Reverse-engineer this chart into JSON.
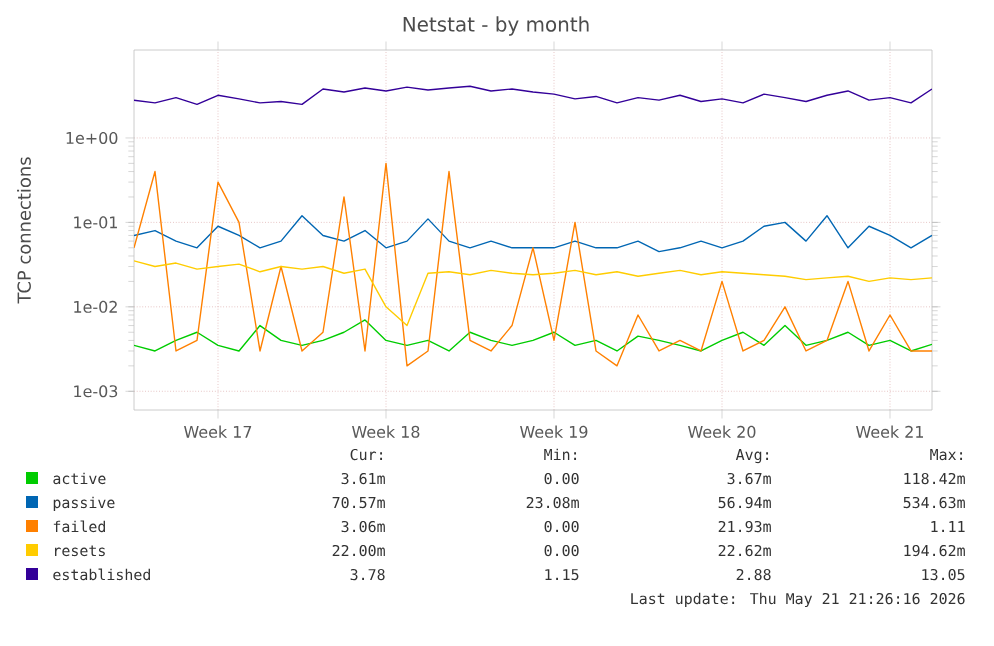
{
  "chart_data": {
    "type": "line",
    "title": "Netstat - by month",
    "ylabel": "TCP connections",
    "log": "y",
    "grid": true,
    "legend": "bottom",
    "ylim": [
      0.0006,
      11
    ],
    "yticks": [
      {
        "value": 0.001,
        "label": "1e-03"
      },
      {
        "value": 0.01,
        "label": "1e-02"
      },
      {
        "value": 0.1,
        "label": "1e-01"
      },
      {
        "value": 1,
        "label": "1e+00"
      }
    ],
    "categories": [
      null,
      null,
      null,
      null,
      "Week 17",
      null,
      null,
      null,
      null,
      null,
      null,
      null,
      "Week 18",
      null,
      null,
      null,
      null,
      null,
      null,
      null,
      "Week 19",
      null,
      null,
      null,
      null,
      null,
      null,
      null,
      "Week 20",
      null,
      null,
      null,
      null,
      null,
      null,
      null,
      "Week 21",
      null,
      null
    ],
    "series": [
      {
        "name": "active",
        "color": "#00cc00",
        "values": [
          0.0035,
          0.003,
          0.004,
          0.005,
          0.0035,
          0.003,
          0.006,
          0.004,
          0.0035,
          0.004,
          0.005,
          0.007,
          0.004,
          0.0035,
          0.004,
          0.003,
          0.005,
          0.004,
          0.0035,
          0.004,
          0.005,
          0.0035,
          0.004,
          0.003,
          0.0045,
          0.004,
          0.0035,
          0.003,
          0.004,
          0.005,
          0.0035,
          0.006,
          0.0035,
          0.004,
          0.005,
          0.0035,
          0.004,
          0.003,
          0.0036
        ]
      },
      {
        "name": "passive",
        "color": "#0066b3",
        "values": [
          0.07,
          0.08,
          0.06,
          0.05,
          0.09,
          0.07,
          0.05,
          0.06,
          0.12,
          0.07,
          0.06,
          0.08,
          0.05,
          0.06,
          0.11,
          0.06,
          0.05,
          0.06,
          0.05,
          0.05,
          0.05,
          0.06,
          0.05,
          0.05,
          0.06,
          0.045,
          0.05,
          0.06,
          0.05,
          0.06,
          0.09,
          0.1,
          0.06,
          0.12,
          0.05,
          0.09,
          0.07,
          0.05,
          0.07
        ]
      },
      {
        "name": "failed",
        "color": "#ff8000",
        "values": [
          0.05,
          0.4,
          0.003,
          0.004,
          0.3,
          0.1,
          0.003,
          0.03,
          0.003,
          0.005,
          0.2,
          0.003,
          0.5,
          0.002,
          0.003,
          0.4,
          0.004,
          0.003,
          0.006,
          0.05,
          0.004,
          0.1,
          0.003,
          0.002,
          0.008,
          0.003,
          0.004,
          0.003,
          0.02,
          0.003,
          0.004,
          0.01,
          0.003,
          0.004,
          0.02,
          0.003,
          0.008,
          0.003,
          0.003
        ]
      },
      {
        "name": "resets",
        "color": "#ffcc00",
        "values": [
          0.035,
          0.03,
          0.033,
          0.028,
          0.03,
          0.032,
          0.026,
          0.03,
          0.028,
          0.03,
          0.025,
          0.028,
          0.01,
          0.006,
          0.025,
          0.026,
          0.024,
          0.027,
          0.025,
          0.024,
          0.025,
          0.027,
          0.024,
          0.026,
          0.023,
          0.025,
          0.027,
          0.024,
          0.026,
          0.025,
          0.024,
          0.023,
          0.021,
          0.022,
          0.023,
          0.02,
          0.022,
          0.021,
          0.022
        ]
      },
      {
        "name": "established",
        "color": "#330099",
        "values": [
          2.8,
          2.6,
          3.0,
          2.5,
          3.2,
          2.9,
          2.6,
          2.7,
          2.5,
          3.8,
          3.5,
          3.9,
          3.6,
          4.0,
          3.7,
          3.9,
          4.1,
          3.6,
          3.8,
          3.5,
          3.3,
          2.9,
          3.1,
          2.6,
          3.0,
          2.8,
          3.2,
          2.7,
          2.9,
          2.6,
          3.3,
          3.0,
          2.7,
          3.2,
          3.6,
          2.8,
          3.0,
          2.6,
          3.8
        ]
      }
    ],
    "annotations": [
      "Cur:",
      "Min:",
      "Avg:",
      "Max:",
      "3.61m",
      "0.00",
      "3.67m",
      "118.42m",
      "70.57m",
      "23.08m",
      "56.94m",
      "534.63m",
      "3.06m",
      "0.00",
      "21.93m",
      "1.11",
      "22.00m",
      "0.00",
      "22.62m",
      "194.62m",
      "3.78",
      "1.15",
      "2.88",
      "13.05",
      "Last update: Thu May 21 21:26:16 2026"
    ]
  }
}
